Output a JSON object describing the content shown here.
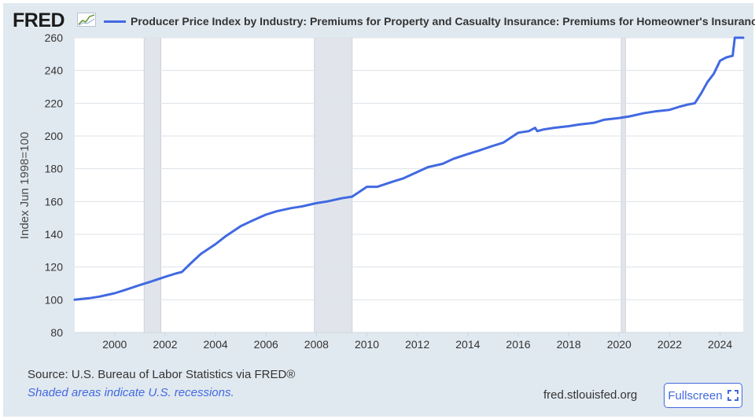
{
  "header": {
    "logo_text": "FRED",
    "logo_icon": "fred-sparkline-icon"
  },
  "footer": {
    "source": "Source: U.S. Bureau of Labor Statistics via FRED®",
    "note": "Shaded areas indicate U.S. recessions.",
    "site": "fred.stlouisfed.org",
    "fullscreen_label": "Fullscreen",
    "fullscreen_icon": "expand-icon"
  },
  "colors": {
    "series": "#4169e1",
    "recession": "#e1e5eb",
    "grid": "#dde3ea",
    "frame": "#e1e9f0"
  },
  "chart_data": {
    "type": "line",
    "title": "",
    "xlabel": "",
    "ylabel": "Index Jun 1998=100",
    "xlim": [
      "1998-06-01",
      "2024-12-01"
    ],
    "ylim": [
      80,
      260
    ],
    "xticks": [
      "2000",
      "2002",
      "2004",
      "2006",
      "2008",
      "2010",
      "2012",
      "2014",
      "2016",
      "2018",
      "2020",
      "2022",
      "2024"
    ],
    "yticks": [
      80,
      100,
      120,
      140,
      160,
      180,
      200,
      220,
      240,
      260
    ],
    "grid": true,
    "legend_position": "top",
    "recessions": [
      [
        "2001-03-01",
        "2001-11-01"
      ],
      [
        "2007-12-01",
        "2009-06-01"
      ],
      [
        "2020-02-01",
        "2020-04-01"
      ]
    ],
    "series": [
      {
        "name": "Producer Price Index by Industry: Premiums for Property and Casualty Insurance: Premiums for Homeowner's Insurance",
        "x": [
          "1998-06-01",
          "1999-01-01",
          "1999-06-01",
          "2000-01-01",
          "2000-06-01",
          "2001-01-01",
          "2001-06-01",
          "2002-01-01",
          "2002-06-01",
          "2002-09-01",
          "2003-01-01",
          "2003-06-01",
          "2004-01-01",
          "2004-06-01",
          "2005-01-01",
          "2005-06-01",
          "2006-01-01",
          "2006-06-01",
          "2007-01-01",
          "2007-06-01",
          "2008-01-01",
          "2008-06-01",
          "2009-01-01",
          "2009-06-01",
          "2010-01-01",
          "2010-06-01",
          "2011-01-01",
          "2011-06-01",
          "2012-01-01",
          "2012-06-01",
          "2013-01-01",
          "2013-06-01",
          "2014-01-01",
          "2014-06-01",
          "2015-01-01",
          "2015-06-01",
          "2016-01-01",
          "2016-06-01",
          "2016-09-01",
          "2016-10-01",
          "2017-01-01",
          "2017-06-01",
          "2018-01-01",
          "2018-06-01",
          "2019-01-01",
          "2019-06-01",
          "2020-01-01",
          "2020-06-01",
          "2021-01-01",
          "2021-06-01",
          "2022-01-01",
          "2022-06-01",
          "2022-09-01",
          "2023-01-01",
          "2023-04-01",
          "2023-07-01",
          "2023-10-01",
          "2024-01-01",
          "2024-04-01",
          "2024-07-01",
          "2024-08-01",
          "2024-12-01"
        ],
        "values": [
          100,
          101,
          102,
          104,
          106,
          109,
          111,
          114,
          116,
          117,
          122,
          128,
          134,
          139,
          145,
          148,
          152,
          154,
          156,
          157,
          159,
          160,
          162,
          163,
          169,
          169,
          172,
          174,
          178,
          181,
          183,
          186,
          189,
          191,
          194,
          196,
          202,
          203,
          205,
          203,
          204,
          205,
          206,
          207,
          208,
          210,
          211,
          212,
          214,
          215,
          216,
          218,
          219,
          220,
          226,
          233,
          238,
          246,
          248,
          249,
          260,
          260
        ]
      }
    ]
  }
}
